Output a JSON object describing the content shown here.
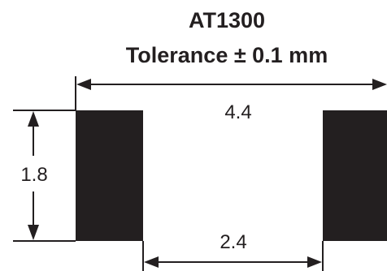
{
  "title": "AT1300",
  "subtitle": "Tolerance ± 0.1 mm",
  "dimensions": {
    "overall_width": "4.4",
    "height": "1.8",
    "gap_width": "2.4"
  },
  "colors": {
    "ink": "#231f20",
    "background": "#ffffff"
  }
}
